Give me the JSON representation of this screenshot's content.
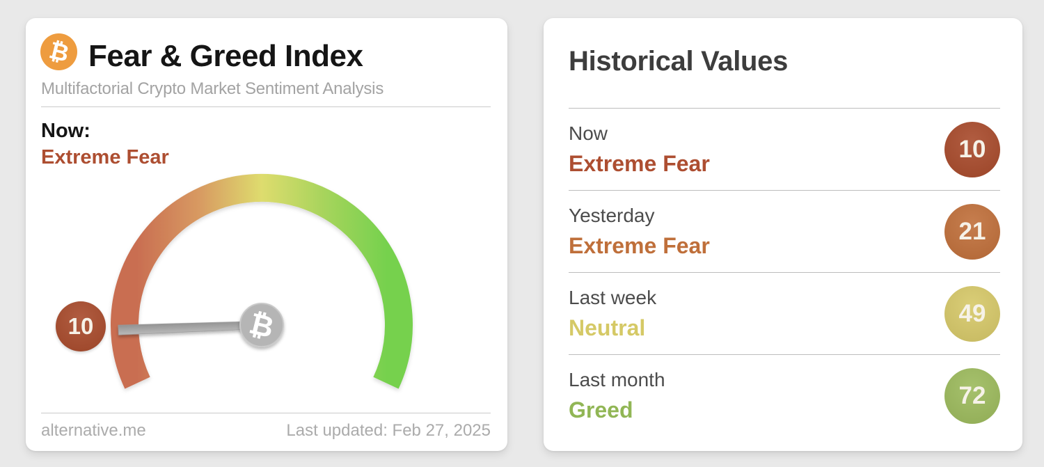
{
  "page": {
    "background_color": "#e9e9e9",
    "card_color": "#ffffff"
  },
  "fear_greed_card": {
    "bitcoin_symbol": "₿",
    "bitcoin_color": "#ee9c3f",
    "title": "Fear & Greed Index",
    "subtitle": "Multifactorial Crypto Market Sentiment Analysis",
    "now_label": "Now:",
    "now_classification": "Extreme Fear",
    "now_classification_color": "#ad4e31",
    "gauge": {
      "value": 10,
      "min": 0,
      "max": 100,
      "badge_color": "#a84a2b",
      "arc_colors": [
        "#c96e51",
        "#d89a62",
        "#dedc6e",
        "#a7d45c",
        "#76d14e"
      ],
      "needle_color_dark": "#8f8f8f",
      "needle_color_light": "#bcbcbc",
      "hub_color": "#b5b5b5"
    },
    "footer_left": "alternative.me",
    "footer_right": "Last updated: Feb 27, 2025"
  },
  "historical_card": {
    "title": "Historical Values",
    "rows": [
      {
        "label": "Now",
        "classification": "Extreme Fear",
        "value": 10,
        "badge_color": "#a84a2b",
        "text_color": "#ad4e31"
      },
      {
        "label": "Yesterday",
        "classification": "Extreme Fear",
        "value": 21,
        "badge_color": "#c06f3a",
        "text_color": "#bf6f3a"
      },
      {
        "label": "Last week",
        "classification": "Neutral",
        "value": 49,
        "badge_color": "#d6c868",
        "text_color": "#d5c966"
      },
      {
        "label": "Last month",
        "classification": "Greed",
        "value": 72,
        "badge_color": "#9cba5c",
        "text_color": "#91b655"
      }
    ]
  },
  "chart_data": {
    "type": "gauge",
    "title": "Fear & Greed Index",
    "value": 10,
    "range": [
      0,
      100
    ],
    "classification": "Extreme Fear",
    "scale_colors": [
      "#c96e51",
      "#d89a62",
      "#dedc6e",
      "#a7d45c",
      "#76d14e"
    ],
    "historical": [
      {
        "period": "Now",
        "value": 10,
        "classification": "Extreme Fear"
      },
      {
        "period": "Yesterday",
        "value": 21,
        "classification": "Extreme Fear"
      },
      {
        "period": "Last week",
        "value": 49,
        "classification": "Neutral"
      },
      {
        "period": "Last month",
        "value": 72,
        "classification": "Greed"
      }
    ],
    "source": "alternative.me",
    "last_updated": "Feb 27, 2025"
  }
}
